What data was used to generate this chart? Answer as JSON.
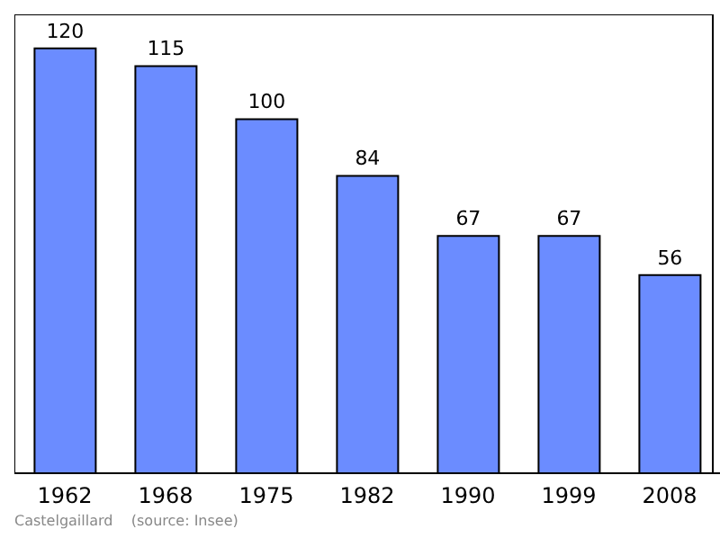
{
  "chart_data": {
    "type": "bar",
    "categories": [
      "1962",
      "1968",
      "1975",
      "1982",
      "1990",
      "1999",
      "2008"
    ],
    "values": [
      120,
      115,
      100,
      84,
      67,
      67,
      56
    ],
    "color": "#6b8cff",
    "data_labels": true,
    "annotations": [
      "Castelgaillard    (source: Insee)"
    ]
  }
}
